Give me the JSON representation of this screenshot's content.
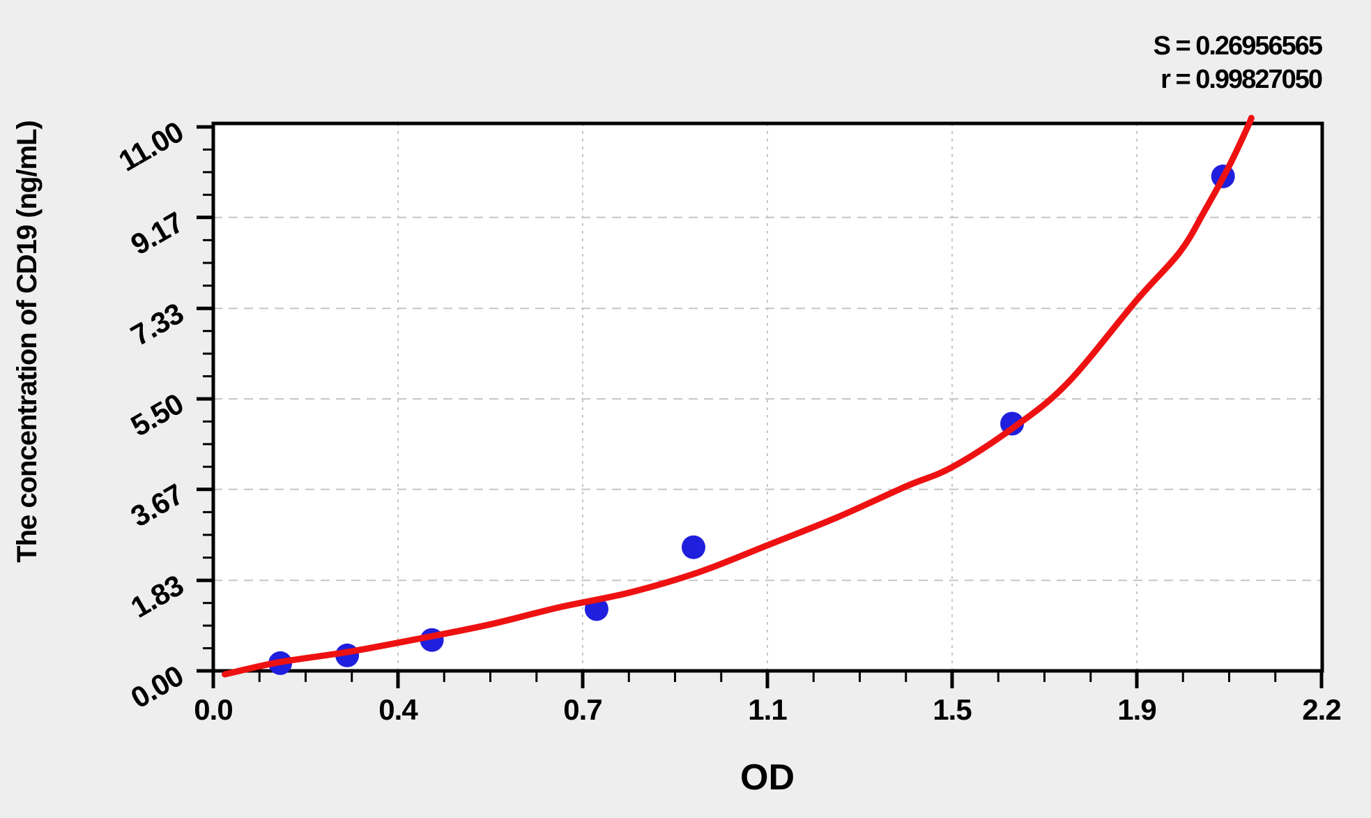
{
  "page": {
    "background_color": "#eeeeee",
    "plot_background_color": "#ffffff",
    "axis_color": "#000000",
    "grid_color": "#c6c6c6"
  },
  "chart_data": {
    "type": "scatter",
    "title": "",
    "xlabel": "OD",
    "ylabel": "The concentration of CD19 (ng/mL)",
    "xlim": [
      0,
      2.2
    ],
    "ylim": [
      0,
      11
    ],
    "grid": true,
    "legend_position": "none",
    "x_ticks": {
      "labels": [
        "0.0",
        "0.4",
        "0.7",
        "1.1",
        "1.5",
        "1.9",
        "2.2"
      ],
      "values": [
        0,
        0.4,
        0.7,
        1.1,
        1.5,
        1.9,
        2.2
      ],
      "minor_per_interval": 3
    },
    "y_ticks": {
      "labels": [
        "0.00",
        "1.83",
        "3.67",
        "5.50",
        "7.33",
        "9.17",
        "11.00"
      ],
      "values": [
        0,
        1.83,
        3.67,
        5.5,
        7.33,
        9.17,
        11
      ],
      "minor_per_interval": 3
    },
    "annotations": {
      "s": "S = 0.26956565",
      "r": "r = 0.99827050"
    },
    "series": [
      {
        "name": "standard-points",
        "type": "scatter",
        "marker": "circle",
        "marker_radius_px": 17,
        "color": "#1f1fdd",
        "points": [
          [
            0.145,
            0.156
          ],
          [
            0.29,
            0.3125
          ],
          [
            0.455,
            0.625
          ],
          [
            0.73,
            1.25
          ],
          [
            0.94,
            2.5
          ],
          [
            1.63,
            5.0
          ],
          [
            2.04,
            10.0
          ]
        ]
      },
      {
        "name": "fitted-curve",
        "type": "line",
        "stroke_width_px": 9,
        "color": "#ee1111",
        "points": [
          [
            0.025,
            -0.07
          ],
          [
            0.14,
            0.17
          ],
          [
            0.29,
            0.38
          ],
          [
            0.43,
            0.64
          ],
          [
            0.55,
            0.94
          ],
          [
            0.66,
            1.28
          ],
          [
            0.8,
            1.58
          ],
          [
            0.95,
            1.99
          ],
          [
            1.1,
            2.54
          ],
          [
            1.25,
            3.1
          ],
          [
            1.4,
            3.73
          ],
          [
            1.5,
            4.12
          ],
          [
            1.63,
            4.9
          ],
          [
            1.75,
            5.82
          ],
          [
            1.9,
            7.5
          ],
          [
            1.97,
            8.47
          ],
          [
            2.01,
            9.3
          ],
          [
            2.05,
            10.21
          ],
          [
            2.08,
            11.0
          ],
          [
            2.086,
            11.18
          ]
        ]
      }
    ]
  }
}
